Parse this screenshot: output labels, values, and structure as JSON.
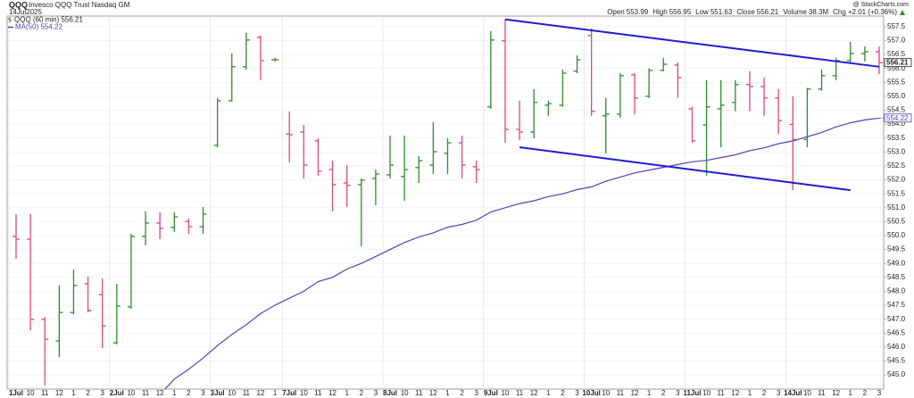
{
  "chart_data": {
    "type": "ohlc",
    "symbol": "QQQ",
    "title": "Invesco QQQ Trust Nasdaq GM",
    "date": "14Jul2025",
    "source": "@ StockCharts.com",
    "stats": [
      {
        "label": "Open",
        "value": "553.99"
      },
      {
        "label": "High",
        "value": "556.95"
      },
      {
        "label": "Low",
        "value": "551.63"
      },
      {
        "label": "Close",
        "value": "556.21"
      },
      {
        "label": "Volume",
        "value": "38.3M"
      },
      {
        "label": "Chg",
        "value": "+2.01 (+0.36%)"
      }
    ],
    "up_color": "#2f8a2f",
    "down_color": "#e0457b",
    "grid": true,
    "ylim": [
      544.49,
      557.88
    ],
    "yticks": [
      {
        "value": 545,
        "label": "545.0"
      },
      545.5,
      {
        "value": 546,
        "label": "546.0"
      },
      546.5,
      {
        "value": 547,
        "label": "547.0"
      },
      547.5,
      {
        "value": 548,
        "label": "548.0"
      },
      548.5,
      {
        "value": 549,
        "label": "549.0"
      },
      549.5,
      {
        "value": 550,
        "label": "550.0"
      },
      550.5,
      {
        "value": 551,
        "label": "551.0"
      },
      551.5,
      {
        "value": 552,
        "label": "552.0"
      },
      552.5,
      {
        "value": 553,
        "label": "553.0"
      },
      553.5,
      {
        "value": 554,
        "label": "554.0"
      },
      554.5,
      {
        "value": 555,
        "label": "555.0"
      },
      555.5,
      {
        "value": 556,
        "label": "556.0"
      },
      556.5,
      {
        "value": 557,
        "label": "557.0"
      },
      557.5
    ],
    "categories": [
      "1Jul",
      "10",
      "11",
      "12",
      "1",
      "2",
      "3",
      "2Jul",
      "10",
      "11",
      "12",
      "1",
      "2",
      "3",
      "3Jul",
      "10",
      "11",
      "12",
      "1",
      "7Jul",
      "10",
      "11",
      "12",
      "1",
      "2",
      "3",
      "8Jul",
      "10",
      "11",
      "12",
      "1",
      "2",
      "3",
      "9Jul",
      "10",
      "11",
      "12",
      "1",
      "2",
      "3",
      "10Jul",
      "10",
      "11",
      "12",
      "1",
      "2",
      "3",
      "11Jul",
      "10",
      "11",
      "12",
      "1",
      "2",
      "3",
      "14Jul",
      "10",
      "11",
      "12",
      "1",
      "2",
      "3"
    ],
    "series": [
      {
        "name": "QQQ (60 min) 556.21",
        "last_label": "556.21",
        "open": [
          549.97,
          549.87,
          546.99,
          546.22,
          547.24,
          548.27,
          547.88,
          546.15,
          547.44,
          549.97,
          550.45,
          550.29,
          550.51,
          550.32,
          553.24,
          554.84,
          556.06,
          557.12,
          556.31,
          553.65,
          553.72,
          553.4,
          552.37,
          551.89,
          551.83,
          552.05,
          552.18,
          552.12,
          552.44,
          552.53,
          552.95,
          553.33,
          552.47,
          554.62,
          556.99,
          553.81,
          553.72,
          554.68,
          554.68,
          555.9,
          557.18,
          554.3,
          554.36,
          555.77,
          555.0,
          555.93,
          556.12,
          554.55,
          553.97,
          554.55,
          554.78,
          555.42,
          555.35,
          554.94,
          553.99,
          553.45,
          555.26,
          555.74,
          556.28,
          556.54,
          556.6
        ],
        "high": [
          550.77,
          550.77,
          547.08,
          548.21,
          548.78,
          548.53,
          548.46,
          548.27,
          550.06,
          550.87,
          550.83,
          550.83,
          550.61,
          551.03,
          554.94,
          556.54,
          557.28,
          557.18,
          556.38,
          554.46,
          553.97,
          553.49,
          552.69,
          552.53,
          552.05,
          552.37,
          553.59,
          553.59,
          552.85,
          554.07,
          553.49,
          553.59,
          552.69,
          557.34,
          557.76,
          554.84,
          555.26,
          554.84,
          555.96,
          556.47,
          557.44,
          554.94,
          555.83,
          555.83,
          556.0,
          556.38,
          556.22,
          554.62,
          555.58,
          555.58,
          555.58,
          555.9,
          555.67,
          555.26,
          555.0,
          555.3,
          555.96,
          556.38,
          556.95,
          556.79,
          556.79
        ],
        "low": [
          549.17,
          546.6,
          544.62,
          545.64,
          547.18,
          547.24,
          545.96,
          546.09,
          547.37,
          549.65,
          549.87,
          550.13,
          550.06,
          550.06,
          553.17,
          554.81,
          555.96,
          555.58,
          556.25,
          552.63,
          552.05,
          552.15,
          550.87,
          551.03,
          549.62,
          551.09,
          552.05,
          551.25,
          551.89,
          552.21,
          552.21,
          552.05,
          551.89,
          554.55,
          553.33,
          553.43,
          553.49,
          554.3,
          554.62,
          555.83,
          554.3,
          552.95,
          554.23,
          554.36,
          554.94,
          555.9,
          554.94,
          553.33,
          552.15,
          553.17,
          554.46,
          554.46,
          554.3,
          553.65,
          551.63,
          553.17,
          555.2,
          555.58,
          556.22,
          556.25,
          555.8
        ],
        "close": [
          549.87,
          546.99,
          546.28,
          547.24,
          548.21,
          547.31,
          546.76,
          547.47,
          549.97,
          550.45,
          550.26,
          550.67,
          550.32,
          550.77,
          554.84,
          556.06,
          557.02,
          556.28,
          556.31,
          553.62,
          552.53,
          552.31,
          551.83,
          551.8,
          551.99,
          552.21,
          552.53,
          552.37,
          552.69,
          553.01,
          553.33,
          552.53,
          552.37,
          557.02,
          553.81,
          553.72,
          554.78,
          554.74,
          555.83,
          556.31,
          554.46,
          554.36,
          555.74,
          554.94,
          555.93,
          556.15,
          555.67,
          553.4,
          554.62,
          554.68,
          555.42,
          555.35,
          554.94,
          554.13,
          553.45,
          555.26,
          555.74,
          556.28,
          556.54,
          556.6,
          556.21
        ]
      },
      {
        "name": "MA(50) 554.22",
        "last_label": "554.22",
        "color": "#4b45b8",
        "values": [
          null,
          null,
          null,
          null,
          null,
          null,
          null,
          null,
          null,
          null,
          544.3,
          544.85,
          545.2,
          545.6,
          546.05,
          546.45,
          546.8,
          547.2,
          547.5,
          547.75,
          548.0,
          548.35,
          548.5,
          548.8,
          549.0,
          549.25,
          549.5,
          549.75,
          549.95,
          550.1,
          550.3,
          550.4,
          550.55,
          550.85,
          551.0,
          551.15,
          551.25,
          551.4,
          551.5,
          551.65,
          551.75,
          551.95,
          552.1,
          552.25,
          552.35,
          552.45,
          552.55,
          552.65,
          552.7,
          552.8,
          552.9,
          553.05,
          553.15,
          553.3,
          553.4,
          553.55,
          553.7,
          553.9,
          554.05,
          554.15,
          554.22
        ]
      }
    ],
    "trendlines": [
      {
        "color": "#1c1cd6",
        "x": [
          34,
          60
        ],
        "y": [
          557.76,
          556.06
        ]
      },
      {
        "color": "#1c1cd6",
        "x": [
          35,
          58
        ],
        "y": [
          553.17,
          551.63
        ]
      }
    ]
  }
}
